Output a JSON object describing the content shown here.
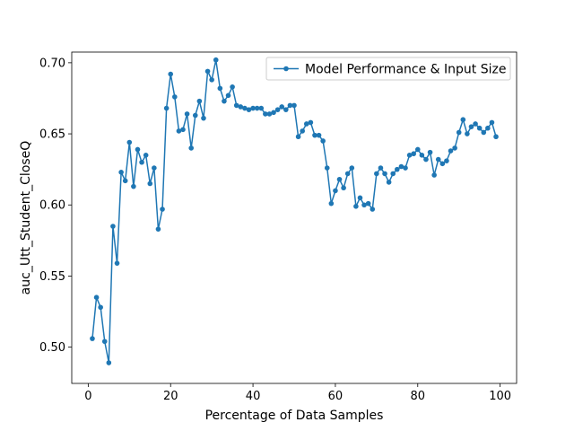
{
  "chart_data": {
    "type": "line",
    "title": "",
    "xlabel": "Percentage of Data Samples",
    "ylabel": "auc_Utt_Student_CloseQ",
    "xlim": [
      -4,
      104
    ],
    "ylim": [
      0.4745,
      0.7075
    ],
    "xticks": [
      0,
      20,
      40,
      60,
      80,
      100
    ],
    "yticks": [
      0.5,
      0.55,
      0.6,
      0.65,
      0.7
    ],
    "grid": false,
    "legend": "top-right",
    "color": "#1f77b4",
    "series": [
      {
        "name": "Model Performance & Input Size",
        "x": [
          1,
          2,
          3,
          4,
          5,
          6,
          7,
          8,
          9,
          10,
          11,
          12,
          13,
          14,
          15,
          16,
          17,
          18,
          19,
          20,
          21,
          22,
          23,
          24,
          25,
          26,
          27,
          28,
          29,
          30,
          31,
          32,
          33,
          34,
          35,
          36,
          37,
          38,
          39,
          40,
          41,
          42,
          43,
          44,
          45,
          46,
          47,
          48,
          49,
          50,
          51,
          52,
          53,
          54,
          55,
          56,
          57,
          58,
          59,
          60,
          61,
          62,
          63,
          64,
          65,
          66,
          67,
          68,
          69,
          70,
          71,
          72,
          73,
          74,
          75,
          76,
          77,
          78,
          79,
          80,
          81,
          82,
          83,
          84,
          85,
          86,
          87,
          88,
          89,
          90,
          91,
          92,
          93,
          94,
          95,
          96,
          97,
          98,
          99
        ],
        "values": [
          0.506,
          0.535,
          0.528,
          0.504,
          0.489,
          0.585,
          0.559,
          0.623,
          0.617,
          0.644,
          0.613,
          0.639,
          0.63,
          0.635,
          0.615,
          0.626,
          0.583,
          0.597,
          0.668,
          0.692,
          0.676,
          0.652,
          0.653,
          0.664,
          0.64,
          0.663,
          0.673,
          0.661,
          0.694,
          0.688,
          0.702,
          0.682,
          0.673,
          0.677,
          0.683,
          0.67,
          0.669,
          0.668,
          0.667,
          0.668,
          0.668,
          0.668,
          0.664,
          0.664,
          0.665,
          0.667,
          0.669,
          0.667,
          0.67,
          0.67,
          0.648,
          0.652,
          0.657,
          0.658,
          0.649,
          0.649,
          0.645,
          0.626,
          0.601,
          0.61,
          0.618,
          0.612,
          0.622,
          0.626,
          0.599,
          0.605,
          0.6,
          0.601,
          0.597,
          0.622,
          0.626,
          0.622,
          0.616,
          0.622,
          0.625,
          0.627,
          0.626,
          0.635,
          0.636,
          0.639,
          0.635,
          0.632,
          0.637,
          0.621,
          0.632,
          0.629,
          0.631,
          0.638,
          0.64,
          0.651,
          0.66,
          0.65,
          0.655,
          0.657,
          0.654,
          0.651,
          0.654,
          0.658,
          0.648
        ]
      }
    ]
  }
}
